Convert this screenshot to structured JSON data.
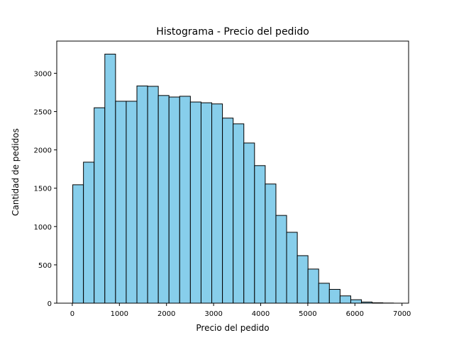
{
  "chart_data": {
    "type": "bar",
    "title": "Histograma - Precio del pedido",
    "xlabel": "Precio del pedido",
    "ylabel": "Cantidad de pedidos",
    "bar_color": "#87ceeb",
    "edge_color": "#000000",
    "xlim": [
      -330,
      7140
    ],
    "ylim": [
      0,
      3420
    ],
    "xticks": [
      0,
      1000,
      2000,
      3000,
      4000,
      5000,
      6000,
      7000
    ],
    "yticks": [
      0,
      500,
      1000,
      1500,
      2000,
      2500,
      3000
    ],
    "bin_edges": [
      10,
      237,
      464,
      691,
      918,
      1145,
      1372,
      1599,
      1826,
      2053,
      2280,
      2507,
      2734,
      2961,
      3188,
      3415,
      3642,
      3869,
      4096,
      4323,
      4550,
      4777,
      5004,
      5231,
      5458,
      5685,
      5912,
      6139,
      6366,
      6593,
      6820
    ],
    "values": [
      1545,
      1840,
      2550,
      3250,
      2635,
      2635,
      2835,
      2830,
      2710,
      2690,
      2700,
      2625,
      2615,
      2600,
      2415,
      2340,
      2090,
      1795,
      1555,
      1145,
      925,
      620,
      445,
      260,
      180,
      95,
      45,
      15,
      5,
      2
    ],
    "grid": false,
    "legend": "none"
  }
}
